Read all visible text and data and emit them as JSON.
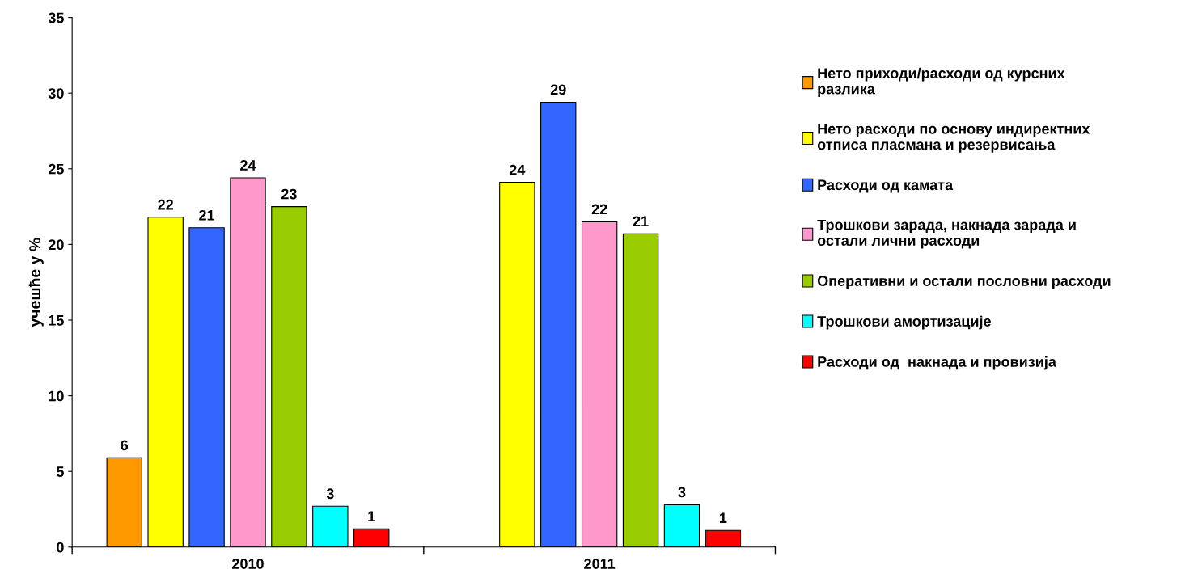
{
  "chart_data": {
    "type": "bar",
    "ylabel": "учешће у %",
    "categories": [
      "2010",
      "2011"
    ],
    "ylim": [
      0,
      35
    ],
    "yticks": [
      0,
      5,
      10,
      15,
      20,
      25,
      30,
      35
    ],
    "grid": false,
    "legend": "right",
    "series": [
      {
        "name": "Нето приходи/расходи од курсних\nразлика",
        "color": "#ff9900",
        "values": [
          5.9,
          null
        ],
        "value_labels": [
          "6",
          null
        ]
      },
      {
        "name": "Нето расходи по основу индиректних\nотписа пласмана и резервисања",
        "color": "#ffff00",
        "values": [
          21.8,
          24.1
        ],
        "value_labels": [
          "22",
          "24"
        ]
      },
      {
        "name": "Расходи од камата",
        "color": "#3366ff",
        "values": [
          21.1,
          29.4
        ],
        "value_labels": [
          "21",
          "29"
        ]
      },
      {
        "name": "Трошкови зарада, накнада зарада и\nостали лични расходи",
        "color": "#ff99cc",
        "values": [
          24.4,
          21.5
        ],
        "value_labels": [
          "24",
          "22"
        ]
      },
      {
        "name": "Оперативни и остали пословни расходи",
        "color": "#99cc00",
        "values": [
          22.5,
          20.7
        ],
        "value_labels": [
          "23",
          "21"
        ]
      },
      {
        "name": "Трошкови амортизације",
        "color": "#00ffff",
        "values": [
          2.7,
          2.8
        ],
        "value_labels": [
          "3",
          "3"
        ]
      },
      {
        "name": "Расходи од  накнада и провизија",
        "color": "#ff0000",
        "values": [
          1.2,
          1.1
        ],
        "value_labels": [
          "1",
          "1"
        ]
      }
    ]
  }
}
